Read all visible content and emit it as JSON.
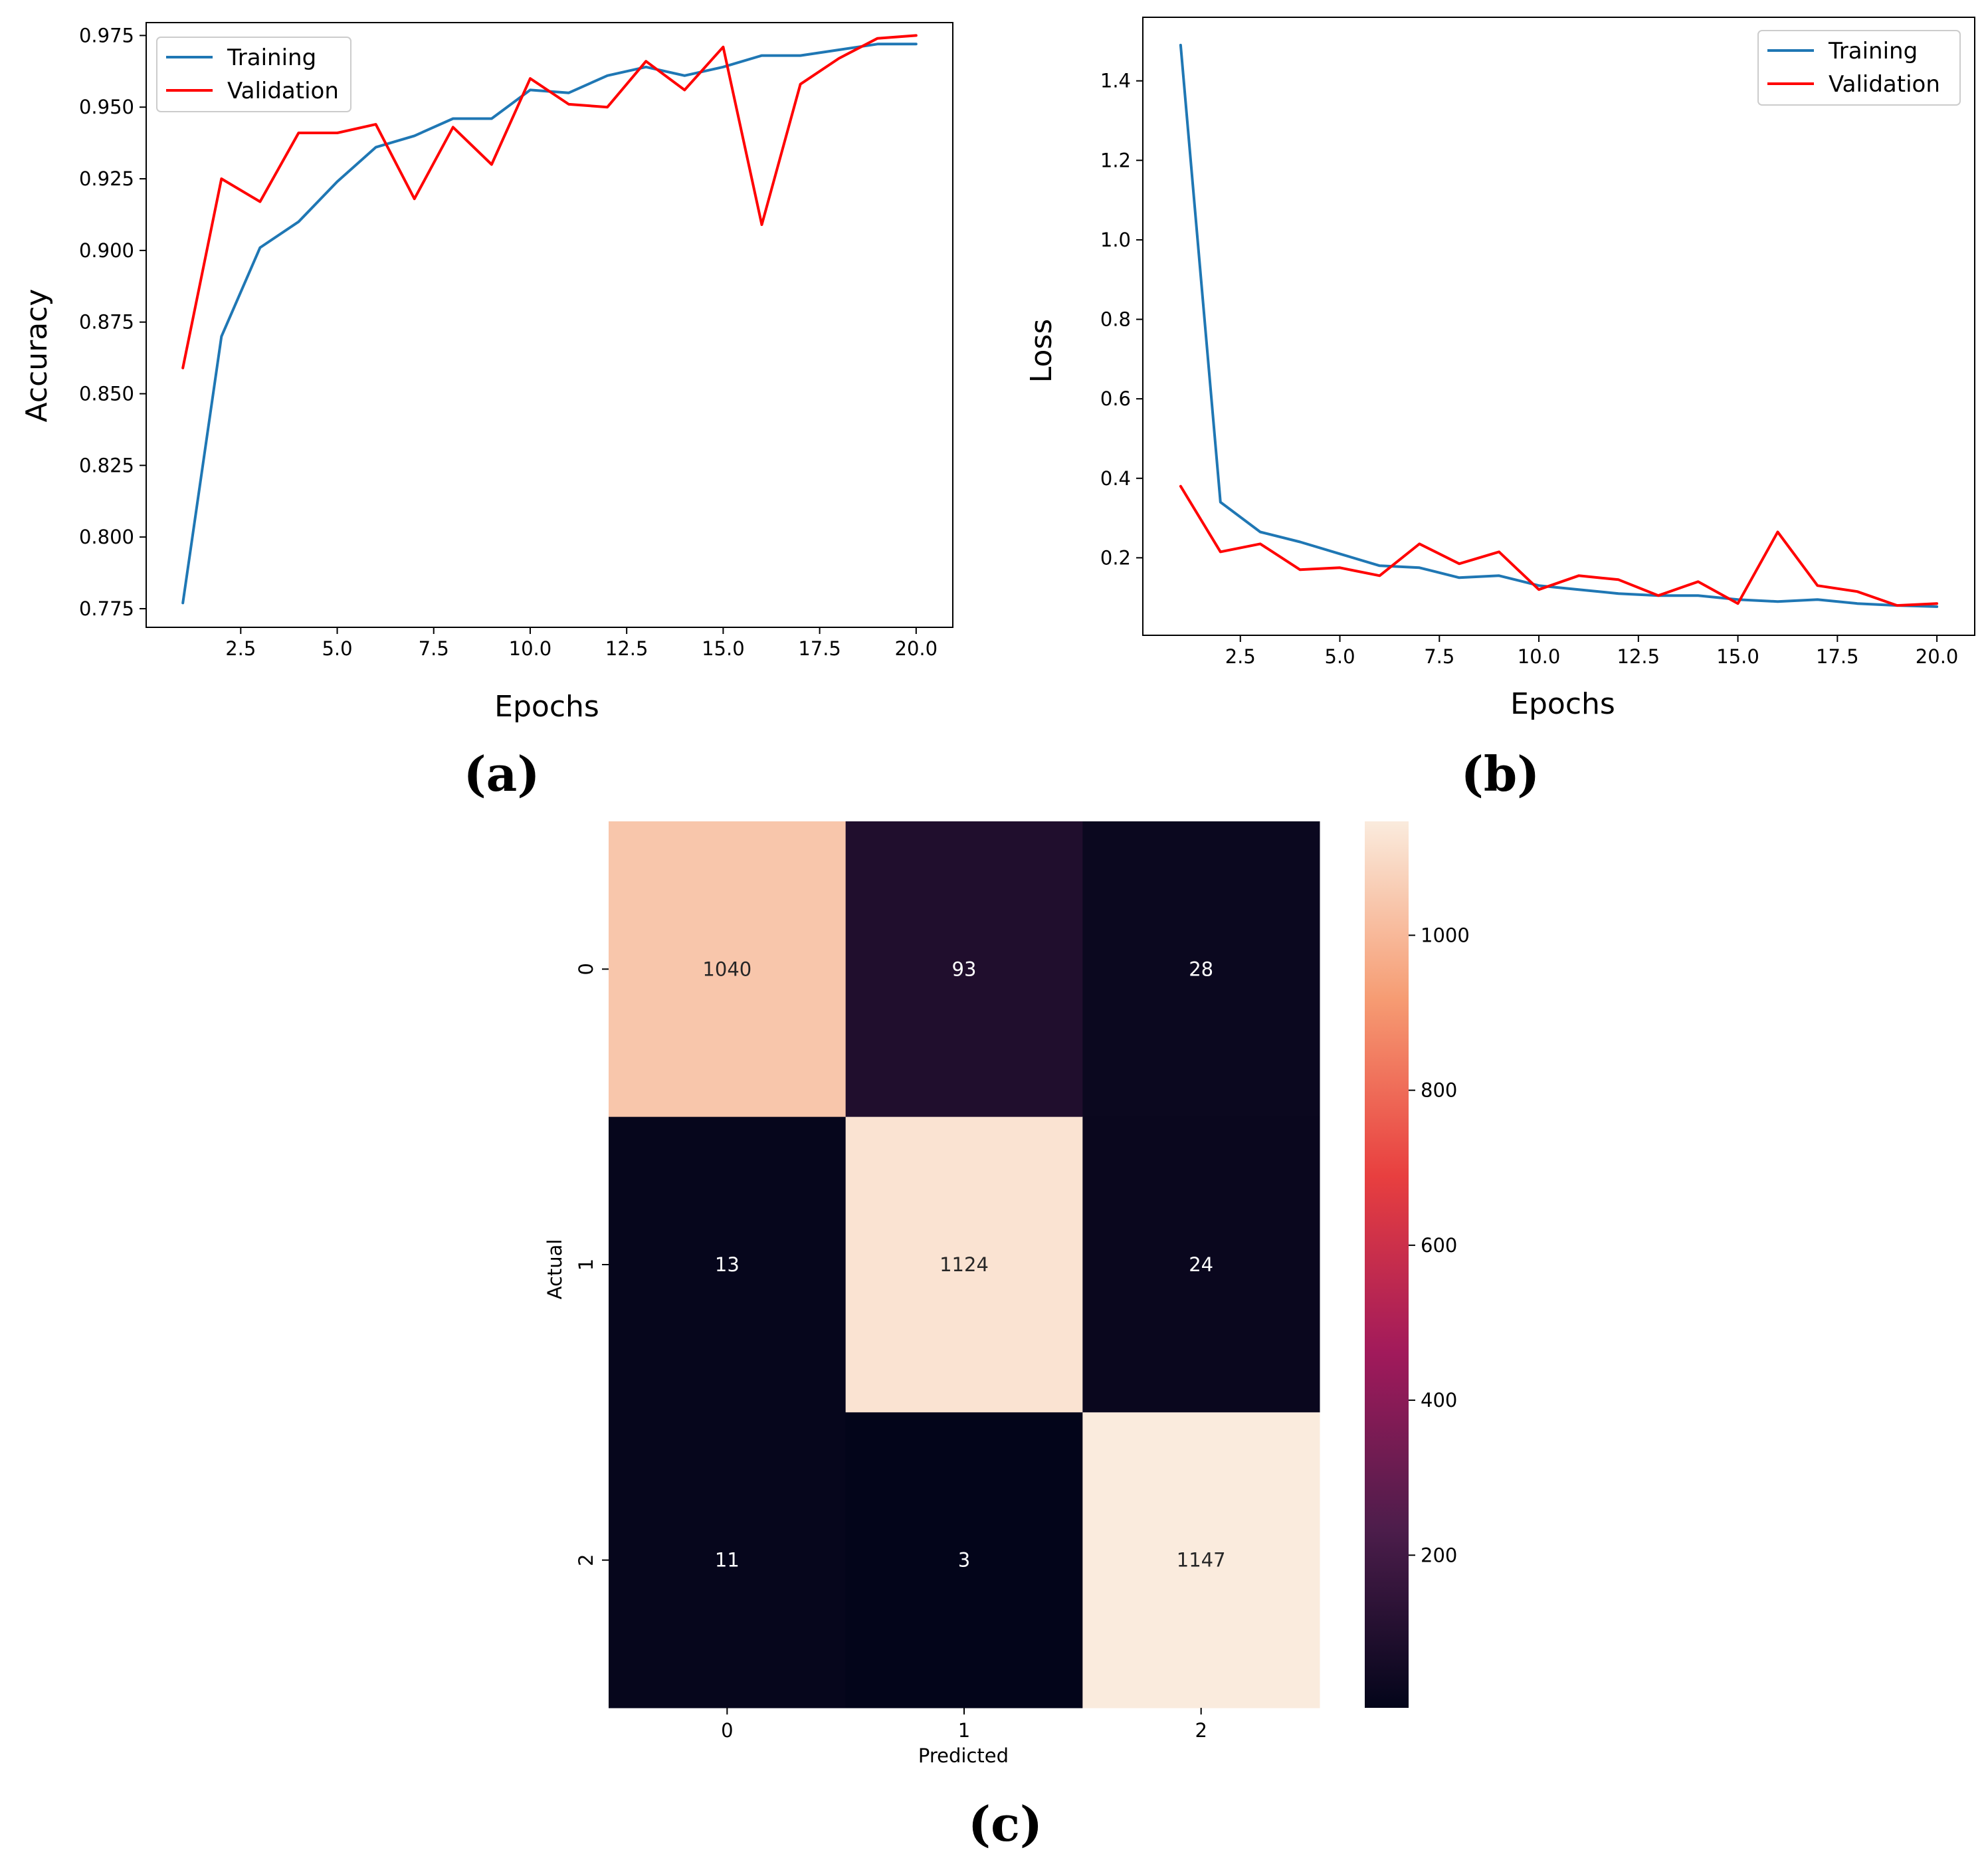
{
  "chart_data": [
    {
      "type": "line",
      "panel_label": "(a)",
      "title": "",
      "xlabel": "Epochs",
      "ylabel": "Accuracy",
      "x": [
        1,
        2,
        3,
        4,
        5,
        6,
        7,
        8,
        9,
        10,
        11,
        12,
        13,
        14,
        15,
        16,
        17,
        18,
        19,
        20
      ],
      "xlim": [
        0.05,
        20.95
      ],
      "ylim": [
        0.7685,
        0.9795
      ],
      "xticks": [
        2.5,
        5.0,
        7.5,
        10.0,
        12.5,
        15.0,
        17.5,
        20.0
      ],
      "xtick_labels": [
        "2.5",
        "5.0",
        "7.5",
        "10.0",
        "12.5",
        "15.0",
        "17.5",
        "20.0"
      ],
      "yticks": [
        0.775,
        0.8,
        0.825,
        0.85,
        0.875,
        0.9,
        0.925,
        0.95,
        0.975
      ],
      "ytick_labels": [
        "0.775",
        "0.800",
        "0.825",
        "0.850",
        "0.875",
        "0.900",
        "0.925",
        "0.950",
        "0.975"
      ],
      "legend_position": "top-left",
      "series": [
        {
          "name": "Training",
          "color": "#1f77b4",
          "values": [
            0.777,
            0.87,
            0.901,
            0.91,
            0.924,
            0.936,
            0.94,
            0.946,
            0.946,
            0.956,
            0.955,
            0.961,
            0.964,
            0.961,
            0.964,
            0.968,
            0.968,
            0.97,
            0.972,
            0.972
          ]
        },
        {
          "name": "Validation",
          "color": "#ff0000",
          "values": [
            0.859,
            0.925,
            0.917,
            0.941,
            0.941,
            0.944,
            0.918,
            0.943,
            0.93,
            0.96,
            0.951,
            0.95,
            0.966,
            0.956,
            0.971,
            0.909,
            0.958,
            0.967,
            0.974,
            0.975
          ]
        }
      ]
    },
    {
      "type": "line",
      "panel_label": "(b)",
      "title": "",
      "xlabel": "Epochs",
      "ylabel": "Loss",
      "x": [
        1,
        2,
        3,
        4,
        5,
        6,
        7,
        8,
        9,
        10,
        11,
        12,
        13,
        14,
        15,
        16,
        17,
        18,
        19,
        20
      ],
      "xlim": [
        0.05,
        20.95
      ],
      "ylim": [
        0.005,
        1.56
      ],
      "xticks": [
        2.5,
        5.0,
        7.5,
        10.0,
        12.5,
        15.0,
        17.5,
        20.0
      ],
      "xtick_labels": [
        "2.5",
        "5.0",
        "7.5",
        "10.0",
        "12.5",
        "15.0",
        "17.5",
        "20.0"
      ],
      "yticks": [
        0.2,
        0.4,
        0.6,
        0.8,
        1.0,
        1.2,
        1.4
      ],
      "ytick_labels": [
        "0.2",
        "0.4",
        "0.6",
        "0.8",
        "1.0",
        "1.2",
        "1.4"
      ],
      "legend_position": "top-right",
      "series": [
        {
          "name": "Training",
          "color": "#1f77b4",
          "values": [
            1.49,
            0.34,
            0.265,
            0.24,
            0.21,
            0.18,
            0.175,
            0.15,
            0.155,
            0.13,
            0.12,
            0.11,
            0.105,
            0.105,
            0.095,
            0.09,
            0.095,
            0.085,
            0.08,
            0.077
          ]
        },
        {
          "name": "Validation",
          "color": "#ff0000",
          "values": [
            0.38,
            0.215,
            0.235,
            0.17,
            0.175,
            0.155,
            0.235,
            0.185,
            0.215,
            0.12,
            0.155,
            0.145,
            0.105,
            0.14,
            0.085,
            0.265,
            0.13,
            0.115,
            0.08,
            0.085
          ]
        }
      ]
    },
    {
      "type": "heatmap",
      "panel_label": "(c)",
      "title": "",
      "xlabel": "Predicted",
      "ylabel": "Actual",
      "x_categories": [
        "0",
        "1",
        "2"
      ],
      "y_categories": [
        "0",
        "1",
        "2"
      ],
      "matrix": [
        [
          1040,
          93,
          28
        ],
        [
          13,
          1124,
          24
        ],
        [
          11,
          3,
          1147
        ]
      ],
      "colorbar": {
        "vmin": 3,
        "vmax": 1147,
        "ticks": [
          200,
          400,
          600,
          800,
          1000
        ],
        "tick_labels": [
          "200",
          "400",
          "600",
          "800",
          "1000"
        ],
        "colormap": "rocket",
        "stops": [
          "#03051a",
          "#4c1d4b",
          "#a11a5b",
          "#e83f3f",
          "#f69c73",
          "#faebdd"
        ]
      }
    }
  ]
}
